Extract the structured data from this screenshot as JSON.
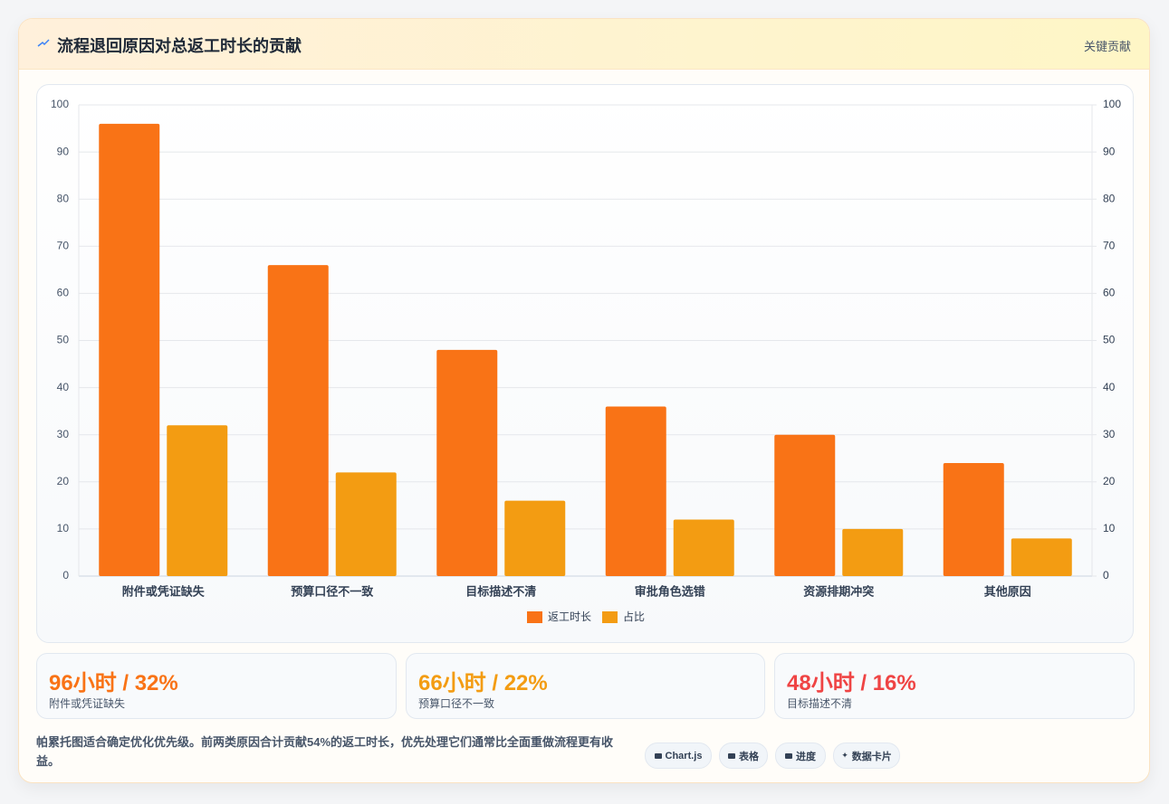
{
  "header": {
    "title": "流程退回原因对总返工时长的贡献",
    "badge": "关键贡献"
  },
  "chart_data": {
    "type": "bar",
    "categories": [
      "附件或凭证缺失",
      "预算口径不一致",
      "目标描述不清",
      "审批角色选错",
      "资源排期冲突",
      "其他原因"
    ],
    "series": [
      {
        "name": "返工时长",
        "color": "#f97316",
        "values": [
          96,
          66,
          48,
          36,
          30,
          24
        ]
      },
      {
        "name": "占比",
        "color": "#f39c12",
        "values": [
          32,
          22,
          16,
          12,
          10,
          8
        ],
        "axis": "y2"
      }
    ],
    "ylim": [
      0,
      100
    ],
    "yticks": [
      0,
      10,
      20,
      30,
      40,
      50,
      60,
      70,
      80,
      90,
      100
    ],
    "y2lim": [
      0,
      100
    ],
    "y2ticks": [
      0,
      10,
      20,
      30,
      40,
      50,
      60,
      70,
      80,
      90,
      100
    ],
    "grid": true,
    "legend": "bottom"
  },
  "cards": [
    {
      "value_text": "96小时 / 32%",
      "label": "附件或凭证缺失",
      "color": "#f97316"
    },
    {
      "value_text": "66小时 / 22%",
      "label": "预算口径不一致",
      "color": "#f39c12"
    },
    {
      "value_text": "48小时 / 16%",
      "label": "目标描述不清",
      "color": "#ef4444"
    }
  ],
  "note": "帕累托图适合确定优化优先级。前两类原因合计贡献54%的返工时长，优先处理它们通常比全面重做流程更有收益。",
  "tags": [
    "Chart.js",
    "表格",
    "进度",
    "数据卡片"
  ]
}
